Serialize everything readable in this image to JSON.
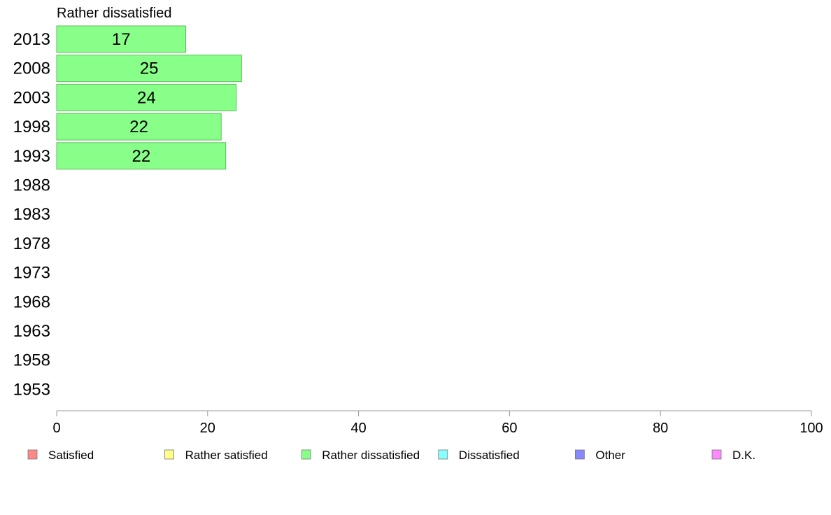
{
  "chart_data": {
    "type": "bar",
    "orientation": "horizontal",
    "title": "Rather dissatisfied",
    "categories": [
      "2013",
      "2008",
      "2003",
      "1998",
      "1993",
      "1988",
      "1983",
      "1978",
      "1973",
      "1968",
      "1963",
      "1958",
      "1953"
    ],
    "series": [
      {
        "name": "Rather dissatisfied",
        "color": "#88ff88",
        "values": [
          17.1,
          24.5,
          23.8,
          21.8,
          22.4,
          null,
          null,
          null,
          null,
          null,
          null,
          null,
          null
        ],
        "labels": [
          "17",
          "25",
          "24",
          "22",
          "22",
          "",
          "",
          "",
          "",
          "",
          "",
          "",
          ""
        ]
      }
    ],
    "xlim": [
      0,
      100
    ],
    "xticks": [
      "0",
      "20",
      "40",
      "60",
      "80",
      "100"
    ],
    "grid": false,
    "legend": {
      "placement": "bottom",
      "items": [
        {
          "label": "Satisfied",
          "color": "#ff8888"
        },
        {
          "label": "Rather satisfied",
          "color": "#ffff88"
        },
        {
          "label": "Rather dissatisfied",
          "color": "#88ff88"
        },
        {
          "label": "Dissatisfied",
          "color": "#88ffff"
        },
        {
          "label": "Other",
          "color": "#8888ff"
        },
        {
          "label": "D.K.",
          "color": "#ff88ff"
        }
      ]
    }
  }
}
